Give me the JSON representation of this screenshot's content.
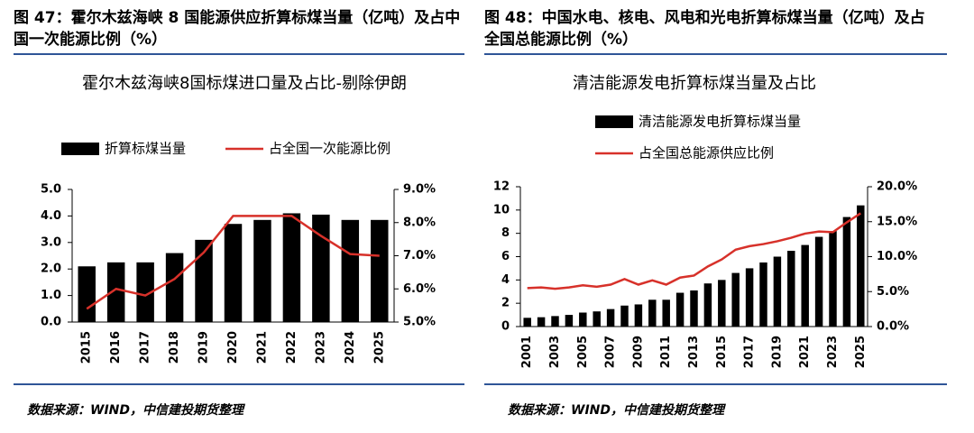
{
  "chart_data": [
    {
      "type": "bar_line",
      "caption": "图 47：霍尔木兹海峡 8 国能源供应折算标煤当量（亿吨）及占中国一次能源比例（%）",
      "title": "霍尔木兹海峡8国标煤进口量及占比-剔除伊朗",
      "source": "数据来源：WIND，中信建投期货整理",
      "categories": [
        "2015",
        "2016",
        "2017",
        "2018",
        "2019",
        "2020",
        "2021",
        "2022",
        "2023",
        "2024",
        "2025"
      ],
      "series": [
        {
          "name": "折算标煤当量",
          "color": "#000000",
          "kind": "bar",
          "values": [
            2.1,
            2.25,
            2.25,
            2.6,
            3.1,
            3.7,
            3.85,
            4.1,
            4.05,
            3.85,
            3.85
          ]
        },
        {
          "name": "占全国一次能源比例",
          "color": "#d7312a",
          "kind": "line",
          "axis": "y2",
          "values": [
            5.4,
            6.0,
            5.8,
            6.3,
            7.1,
            8.2,
            8.2,
            8.2,
            7.6,
            7.05,
            7.0
          ]
        }
      ],
      "ylim": [
        0,
        5
      ],
      "yticks": [
        {
          "value": 0,
          "label": "0.0"
        },
        {
          "value": 1,
          "label": "1.0"
        },
        {
          "value": 2,
          "label": "2.0"
        },
        {
          "value": 3,
          "label": "3.0"
        },
        {
          "value": 4,
          "label": "4.0"
        },
        {
          "value": 5,
          "label": "5.0"
        }
      ],
      "y2lim": [
        5,
        9
      ],
      "y2ticks": [
        {
          "value": 5,
          "label": "5.0%"
        },
        {
          "value": 6,
          "label": "6.0%"
        },
        {
          "value": 7,
          "label": "7.0%"
        },
        {
          "value": 8,
          "label": "8.0%"
        },
        {
          "value": 9,
          "label": "9.0%"
        }
      ]
    },
    {
      "type": "bar_line",
      "caption": "图 48：中国水电、核电、风电和光电折算标煤当量（亿吨）及占全国总能源比例（%）",
      "title": "清洁能源发电折算标煤当量及占比",
      "source": "数据来源：WIND，中信建投期货整理",
      "categories": [
        "2001",
        null,
        "2003",
        null,
        "2005",
        null,
        "2007",
        null,
        "2009",
        null,
        "2011",
        null,
        "2013",
        null,
        "2015",
        null,
        "2017",
        null,
        "2019",
        null,
        "2021",
        null,
        "2023",
        null,
        "2025"
      ],
      "series": [
        {
          "name": "清洁能源发电折算标煤当量",
          "color": "#000000",
          "kind": "bar",
          "values": [
            0.75,
            0.8,
            0.9,
            1.0,
            1.2,
            1.3,
            1.5,
            1.8,
            1.9,
            2.3,
            2.3,
            2.9,
            3.1,
            3.7,
            4.0,
            4.6,
            5.0,
            5.5,
            6.0,
            6.5,
            7.0,
            7.7,
            8.2,
            9.4,
            10.4
          ]
        },
        {
          "name": "占全国总能源供应比例",
          "color": "#d7312a",
          "kind": "line",
          "axis": "y2",
          "values": [
            5.5,
            5.6,
            5.4,
            5.6,
            5.9,
            5.7,
            6.0,
            6.8,
            6.0,
            6.6,
            6.0,
            7.0,
            7.3,
            8.6,
            9.6,
            11.0,
            11.5,
            11.8,
            12.2,
            12.7,
            13.3,
            13.6,
            13.5,
            14.9,
            16.2
          ]
        }
      ],
      "ylim": [
        0,
        12
      ],
      "yticks": [
        0,
        2,
        4,
        6,
        8,
        10,
        12
      ],
      "y2lim": [
        0,
        20
      ],
      "y2ticks": [
        {
          "value": 0,
          "label": "0.0%"
        },
        {
          "value": 5,
          "label": "5.0%"
        },
        {
          "value": 10,
          "label": "10.0%"
        },
        {
          "value": 15,
          "label": "15.0%"
        },
        {
          "value": 20,
          "label": "20.0%"
        }
      ]
    }
  ]
}
